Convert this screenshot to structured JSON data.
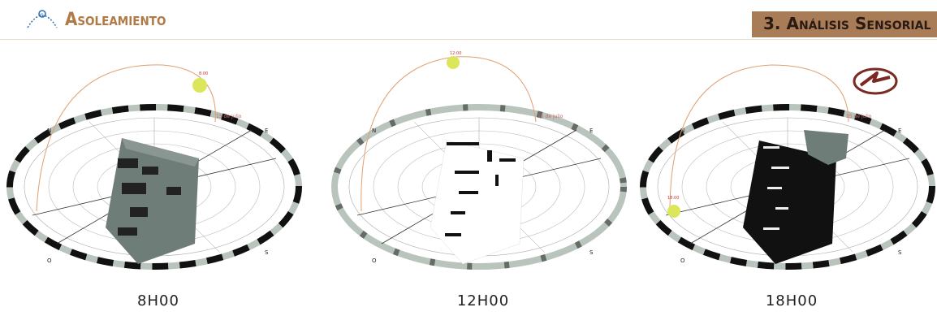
{
  "header": {
    "title": "Asoleamiento",
    "section": "3. Análisis Sensorial"
  },
  "panels": [
    {
      "time_label": "8H00",
      "sun_time": "8:00",
      "date_label": "15 de julio"
    },
    {
      "time_label": "12H00",
      "sun_time": "12:00",
      "date_label": "15 de julio"
    },
    {
      "time_label": "18H00",
      "sun_time": "18:00",
      "date_label": "15 de julio"
    }
  ],
  "compass": {
    "north": "N",
    "east": "E",
    "south": "S",
    "west": "O"
  },
  "colors": {
    "accent": "#b07a45",
    "section_bg": "#a87c56",
    "sun": "#dbe65a",
    "sun_path": "#e0a070",
    "ring_dark": "#111111",
    "ring_light": "#b9c4bc",
    "building_lit": "#6f7d78",
    "building_dark": "#111111",
    "north_badge": "#7a2a22"
  },
  "icons": {
    "logo": "sun-path-icon",
    "north_badge": "north-arrow-icon"
  }
}
